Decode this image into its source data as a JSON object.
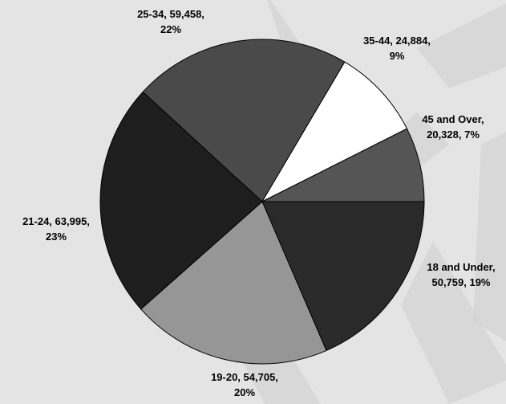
{
  "chart_data": {
    "type": "pie",
    "title": "",
    "slices": [
      {
        "category": "18 and Under",
        "value": 50759,
        "percent": 19,
        "color": "#2a2a2a",
        "label_lines": [
          "18 and Under,",
          "50,759, 19%"
        ]
      },
      {
        "category": "19-20",
        "value": 54705,
        "percent": 20,
        "color": "#969696",
        "label_lines": [
          "19-20, 54,705,",
          "20%"
        ]
      },
      {
        "category": "21-24",
        "value": 63995,
        "percent": 23,
        "color": "#1e1e1e",
        "label_lines": [
          "21-24, 63,995,",
          "23%"
        ]
      },
      {
        "category": "25-34",
        "value": 59458,
        "percent": 22,
        "color": "#4a4a4a",
        "label_lines": [
          "25-34, 59,458,",
          "22%"
        ]
      },
      {
        "category": "35-44",
        "value": 24884,
        "percent": 9,
        "color": "#ffffff",
        "label_lines": [
          "35-44, 24,884,",
          "9%"
        ]
      },
      {
        "category": "45 and Over",
        "value": 20328,
        "percent": 7,
        "color": "#555555",
        "label_lines": [
          "45 and Over,",
          "20,328, 7%"
        ]
      }
    ],
    "legend": "none",
    "label_style": "category, value, percent"
  },
  "colors": {
    "background": "#e4e4e4",
    "watermark": "#d3d3d3",
    "slice_outline": "#000000",
    "label_text": "#000000"
  }
}
